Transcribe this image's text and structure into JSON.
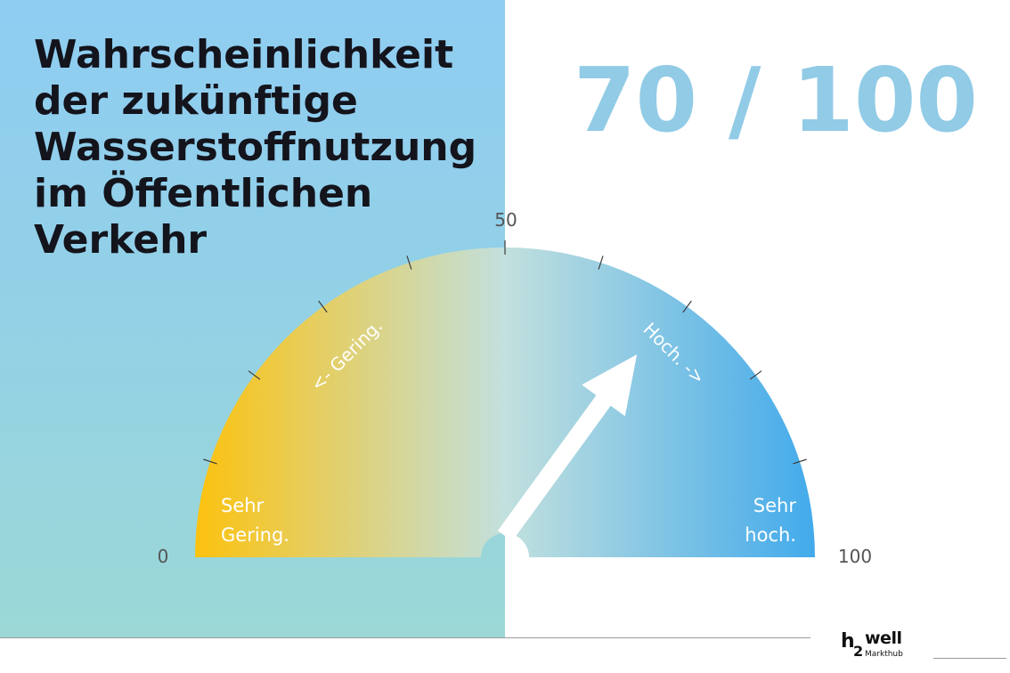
{
  "title_lines": [
    "Wahrscheinlichkeit",
    "der zukünftige",
    "Wasserstoffnutzung",
    "im Öffentlichen",
    "Verkehr"
  ],
  "score_text": "70 / 100",
  "gauge": {
    "min": 0,
    "max": 100,
    "value": 70,
    "min_label": "0",
    "mid_label": "50",
    "max_label": "100",
    "low_label_lines": [
      "Sehr",
      "Gering."
    ],
    "high_label_lines": [
      "Sehr",
      "hoch."
    ],
    "arc_label_low": "<- Gering.",
    "arc_label_high": "Hoch. ->",
    "colors": {
      "low": "#fcc20f",
      "mid": "#c2e0de",
      "high": "#42aaeb",
      "score": "#91cbe6",
      "needle": "#ffffff"
    }
  },
  "logo": {
    "h": "h",
    "two": "2",
    "well": "well",
    "sub": "Markthub"
  }
}
